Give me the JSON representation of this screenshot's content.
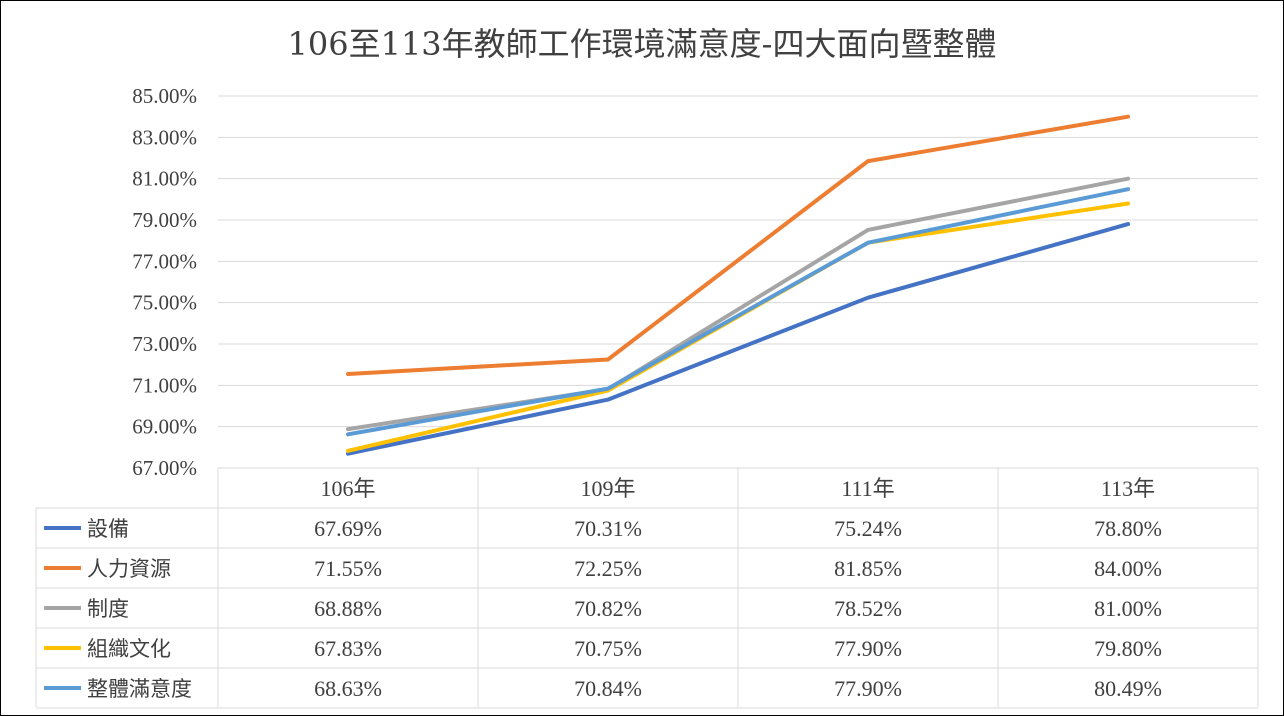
{
  "chart_data": {
    "type": "line",
    "title": "106至113年教師工作環境滿意度-四大面向暨整體",
    "categories": [
      "106年",
      "109年",
      "111年",
      "113年"
    ],
    "ylim": [
      67.0,
      85.0
    ],
    "y_ticks": [
      "67.00%",
      "69.00%",
      "71.00%",
      "73.00%",
      "75.00%",
      "77.00%",
      "79.00%",
      "81.00%",
      "83.00%",
      "85.00%"
    ],
    "y_unit": "%",
    "grid": true,
    "legend": "data table below plot",
    "series": [
      {
        "name": "設備",
        "color": "#4472c4",
        "values": [
          67.69,
          70.31,
          75.24,
          78.8
        ],
        "labels": [
          "67.69%",
          "70.31%",
          "75.24%",
          "78.80%"
        ]
      },
      {
        "name": "人力資源",
        "color": "#ed7d31",
        "values": [
          71.55,
          72.25,
          81.85,
          84.0
        ],
        "labels": [
          "71.55%",
          "72.25%",
          "81.85%",
          "84.00%"
        ]
      },
      {
        "name": "制度",
        "color": "#a5a5a5",
        "values": [
          68.88,
          70.82,
          78.52,
          81.0
        ],
        "labels": [
          "68.88%",
          "70.82%",
          "78.52%",
          "81.00%"
        ]
      },
      {
        "name": "組織文化",
        "color": "#ffc000",
        "values": [
          67.83,
          70.75,
          77.9,
          79.8
        ],
        "labels": [
          "67.83%",
          "70.75%",
          "77.90%",
          "79.80%"
        ]
      },
      {
        "name": "整體滿意度",
        "color": "#5b9bd5",
        "values": [
          68.63,
          70.84,
          77.9,
          80.49
        ],
        "labels": [
          "68.63%",
          "70.84%",
          "77.90%",
          "80.49%"
        ]
      }
    ]
  }
}
